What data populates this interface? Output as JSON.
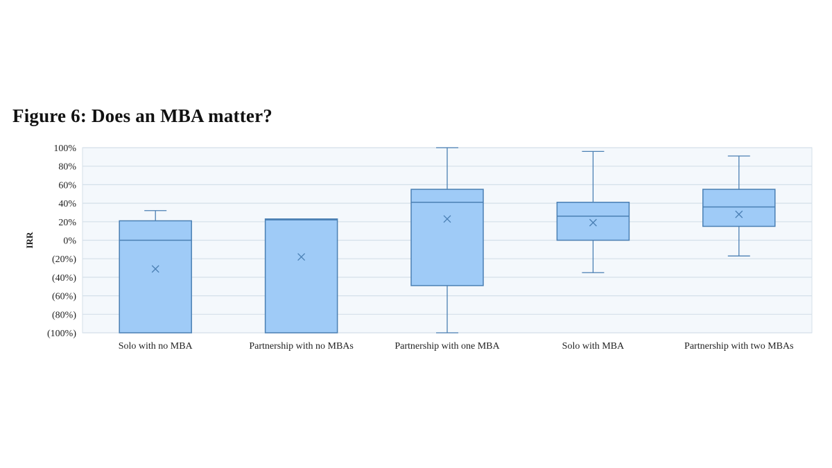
{
  "figure": {
    "title": "Figure 6: Does an MBA matter?"
  },
  "colors": {
    "box_fill": "#9fcbf7",
    "box_stroke": "#4a7fb3",
    "grid": "#d4dfe9",
    "plot_bg": "#f4f8fc"
  },
  "chart_data": {
    "type": "box",
    "title": "Figure 6: Does an MBA matter?",
    "xlabel": "",
    "ylabel": "IRR",
    "ylim": [
      -100,
      100
    ],
    "y_ticks": [
      100,
      80,
      60,
      40,
      20,
      0,
      -20,
      -40,
      -60,
      -80,
      -100
    ],
    "y_tick_labels": [
      "100%",
      "80%",
      "60%",
      "40%",
      "20%",
      "0%",
      "(20%)",
      "(40%)",
      "(60%)",
      "(80%)",
      "(100%)"
    ],
    "grid": true,
    "categories": [
      "Solo with no MBA",
      "Partnership with no MBAs",
      "Partnership with one MBA",
      "Solo with MBA",
      "Partnership with two MBAs"
    ],
    "boxes": [
      {
        "category": "Solo with no MBA",
        "whisker_low": -100,
        "q1": -100,
        "median": 0,
        "q3": 21,
        "whisker_high": 32,
        "mean": -31
      },
      {
        "category": "Partnership with no MBAs",
        "whisker_low": -100,
        "q1": -100,
        "median": 22,
        "q3": 23,
        "whisker_high": 23,
        "mean": -18
      },
      {
        "category": "Partnership with one MBA",
        "whisker_low": -100,
        "q1": -49,
        "median": 41,
        "q3": 55,
        "whisker_high": 100,
        "mean": 23
      },
      {
        "category": "Solo with MBA",
        "whisker_low": -35,
        "q1": 0,
        "median": 26,
        "q3": 41,
        "whisker_high": 96,
        "mean": 19
      },
      {
        "category": "Partnership with two MBAs",
        "whisker_low": -17,
        "q1": 15,
        "median": 36,
        "q3": 55,
        "whisker_high": 91,
        "mean": 28
      }
    ]
  }
}
